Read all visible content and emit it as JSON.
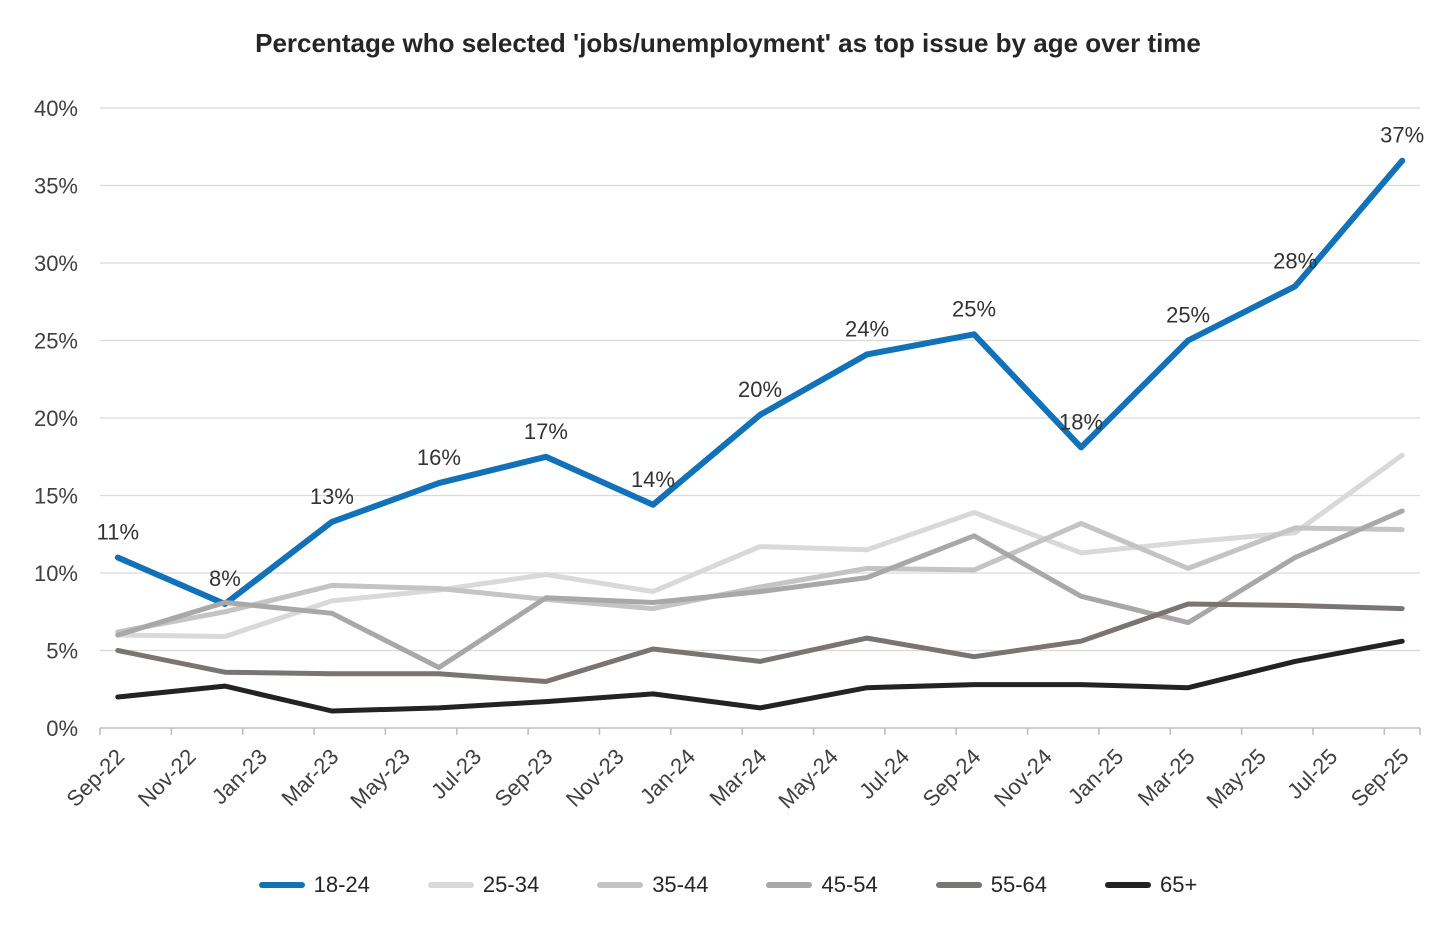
{
  "title": "Percentage who selected 'jobs/unemployment' as top issue by age over time",
  "chart_data": {
    "type": "line",
    "title": "Percentage who selected 'jobs/unemployment' as top issue by age over time",
    "grid": "horizontal",
    "legend_position": "bottom",
    "x_axis": {
      "months_span": 37,
      "tick_labels": [
        "Sep-22",
        "Nov-22",
        "Jan-23",
        "Mar-23",
        "May-23",
        "Jul-23",
        "Sep-23",
        "Nov-23",
        "Jan-24",
        "Mar-24",
        "May-24",
        "Jul-24",
        "Sep-24",
        "Nov-24",
        "Jan-25",
        "Mar-25",
        "May-25",
        "Jul-25",
        "Sep-25"
      ]
    },
    "y_axis": {
      "min": 0,
      "max": 40,
      "step": 5,
      "format": "percent"
    },
    "point_months": [
      "Sep-22",
      "Dec-22",
      "Mar-23",
      "Jun-23",
      "Sep-23",
      "Dec-23",
      "Mar-24",
      "Jun-24",
      "Sep-24",
      "Dec-24",
      "Mar-25",
      "Jun-25",
      "Sep-25"
    ],
    "series_x_months": [
      0,
      3,
      6,
      9,
      12,
      15,
      18,
      21,
      24,
      27,
      30,
      33,
      36
    ],
    "series": [
      {
        "name": "18-24",
        "color": "#1272B9",
        "width": 6,
        "values": [
          11,
          8,
          13.3,
          15.8,
          17.5,
          14.4,
          20.2,
          24.1,
          25.4,
          18.1,
          25,
          28.5,
          36.6
        ],
        "data_labels": [
          "11%",
          "8%",
          "13%",
          "16%",
          "17%",
          "14%",
          "20%",
          "24%",
          "25%",
          "18%",
          "25%",
          "28%",
          "37%"
        ]
      },
      {
        "name": "25-34",
        "color": "#D9D9D9",
        "width": 5,
        "values": [
          6.0,
          5.9,
          8.2,
          8.9,
          9.9,
          8.8,
          11.7,
          11.5,
          13.9,
          11.3,
          12.0,
          12.6,
          17.6
        ]
      },
      {
        "name": "35-44",
        "color": "#C4C4C4",
        "width": 5,
        "values": [
          6.2,
          7.5,
          9.2,
          9.0,
          8.3,
          7.7,
          9.1,
          10.3,
          10.2,
          13.2,
          10.3,
          12.9,
          12.8
        ]
      },
      {
        "name": "45-54",
        "color": "#A8A8A8",
        "width": 5,
        "values": [
          6.0,
          8.1,
          7.4,
          3.9,
          8.4,
          8.1,
          8.8,
          9.7,
          12.4,
          8.5,
          6.8,
          11.0,
          14.0
        ]
      },
      {
        "name": "55-64",
        "color": "#7A7472",
        "width": 5,
        "values": [
          5.0,
          3.6,
          3.5,
          3.5,
          3.0,
          5.1,
          4.3,
          5.8,
          4.6,
          5.6,
          8.0,
          7.9,
          7.7
        ]
      },
      {
        "name": "65+",
        "color": "#232323",
        "width": 5,
        "values": [
          2.0,
          2.7,
          1.1,
          1.3,
          1.7,
          2.2,
          1.3,
          2.6,
          2.8,
          2.8,
          2.6,
          4.3,
          5.6
        ]
      }
    ],
    "style_colors": {
      "gridline": "#D9D9D9",
      "axis_line": "#BFBFBF",
      "tick": "#BFBFBF",
      "axis_text": "#404040",
      "data_label_text": "#333333",
      "title_text": "#262626"
    }
  }
}
